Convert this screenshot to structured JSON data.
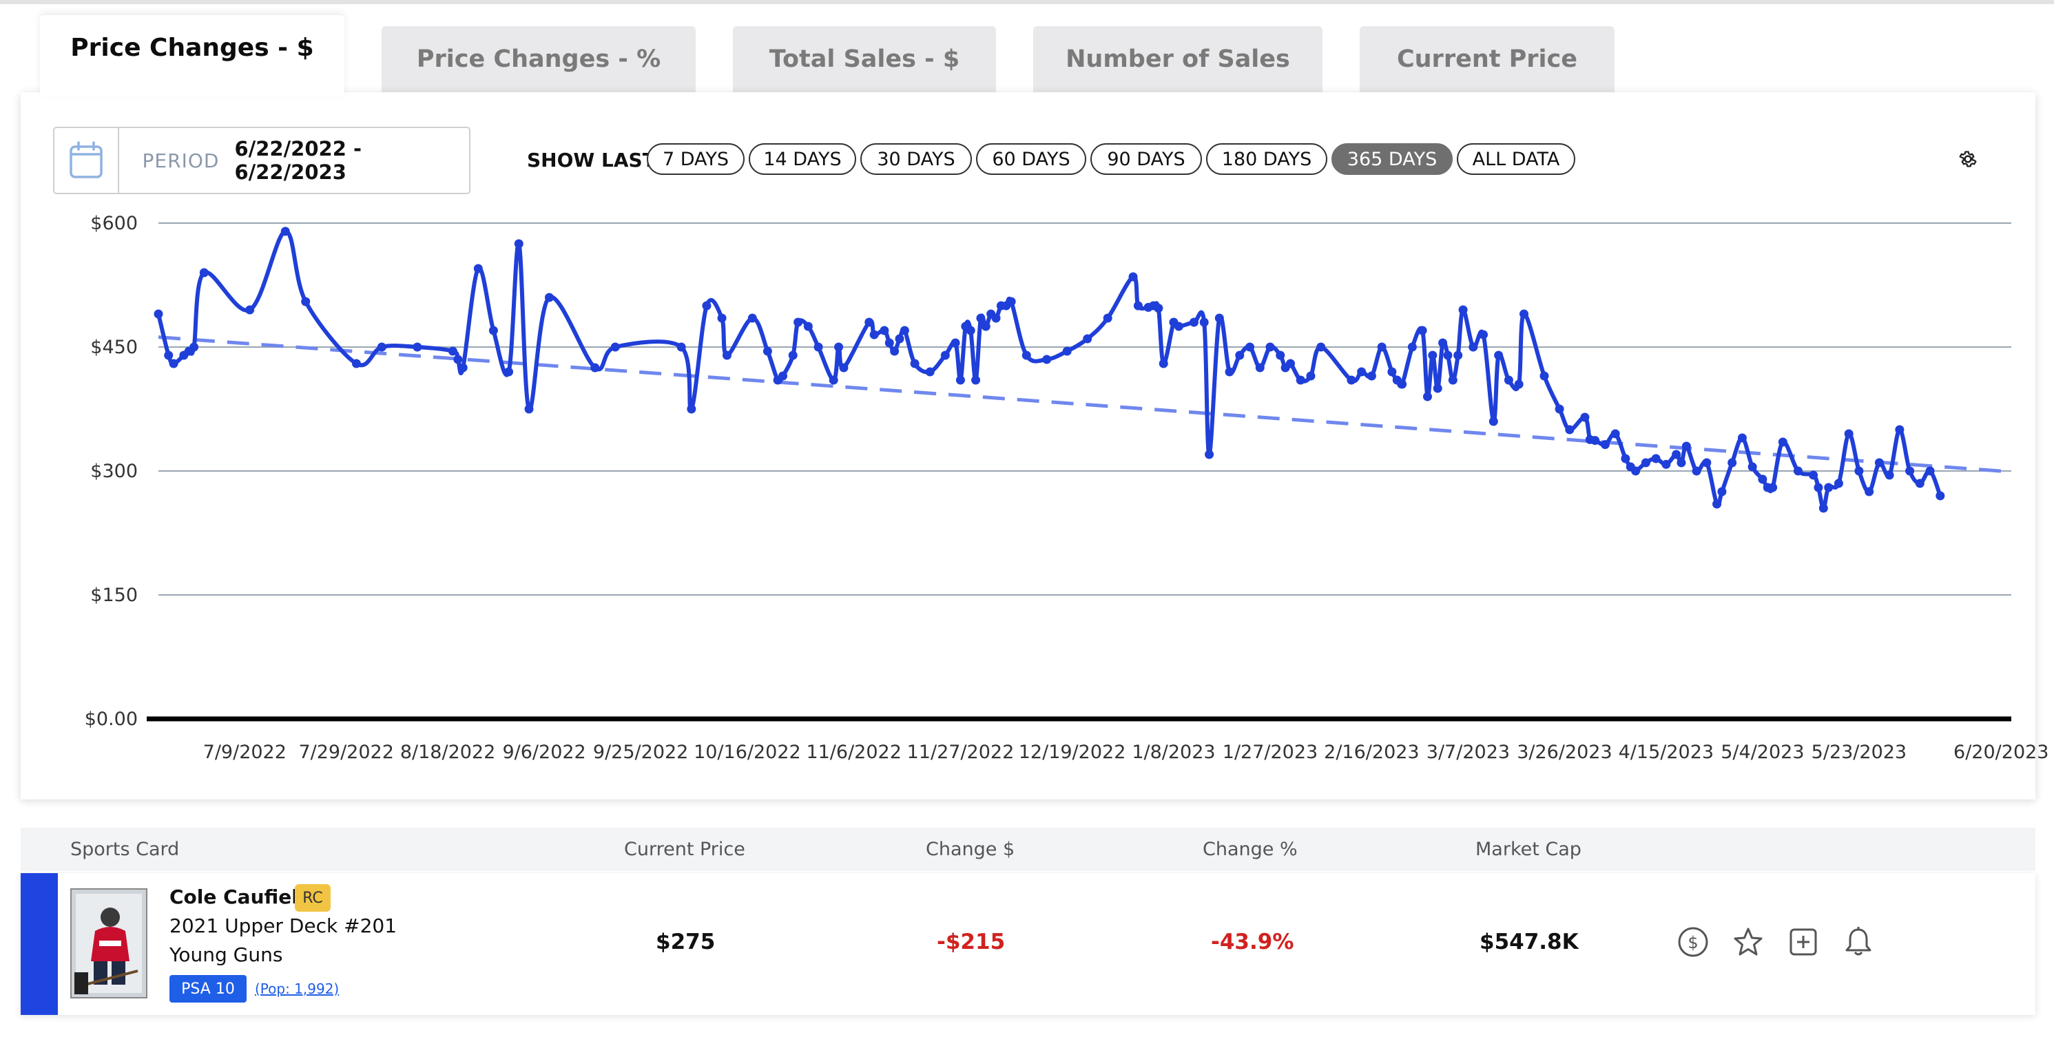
{
  "tabs": [
    {
      "label": "Price Changes - $",
      "active": true
    },
    {
      "label": "Price Changes - %",
      "active": false
    },
    {
      "label": "Total Sales - $",
      "active": false
    },
    {
      "label": "Number of Sales",
      "active": false
    },
    {
      "label": "Current Price",
      "active": false
    }
  ],
  "controls": {
    "period_label": "PERIOD",
    "period_value": "6/22/2022 - 6/22/2023",
    "show_last_label": "SHOW LAST",
    "ranges": [
      "7 DAYS",
      "14 DAYS",
      "30 DAYS",
      "60 DAYS",
      "90 DAYS",
      "180 DAYS",
      "365 DAYS",
      "ALL DATA"
    ],
    "active_range": "365 DAYS"
  },
  "chart_data": {
    "type": "line",
    "ylim": [
      0,
      600
    ],
    "ytick_labels": [
      "$0.00",
      "$150",
      "$300",
      "$450",
      "$600"
    ],
    "ytick_values": [
      0,
      150,
      300,
      450,
      600
    ],
    "xlim": [
      "2022-06-22",
      "2023-06-22"
    ],
    "xtick_labels": [
      "7/9/2022",
      "7/29/2022",
      "8/18/2022",
      "9/6/2022",
      "9/25/2022",
      "10/16/2022",
      "11/6/2022",
      "11/27/2022",
      "12/19/2022",
      "1/8/2023",
      "1/27/2023",
      "2/16/2023",
      "3/7/2023",
      "3/26/2023",
      "4/15/2023",
      "5/4/2023",
      "5/23/2023",
      "6/20/2023"
    ],
    "xtick_dates": [
      "2022-07-09",
      "2022-07-29",
      "2022-08-18",
      "2022-09-06",
      "2022-09-25",
      "2022-10-16",
      "2022-11-06",
      "2022-11-27",
      "2022-12-19",
      "2023-01-08",
      "2023-01-27",
      "2023-02-16",
      "2023-03-07",
      "2023-03-26",
      "2023-04-15",
      "2023-05-04",
      "2023-05-23",
      "2023-06-20"
    ],
    "grid": true,
    "series": [
      {
        "color": "#1f3fd8",
        "points": [
          [
            "2022-06-22",
            490
          ],
          [
            "2022-06-24",
            440
          ],
          [
            "2022-06-25",
            430
          ],
          [
            "2022-06-27",
            440
          ],
          [
            "2022-06-28",
            445
          ],
          [
            "2022-06-29",
            450
          ],
          [
            "2022-07-01",
            540
          ],
          [
            "2022-07-10",
            495
          ],
          [
            "2022-07-17",
            590
          ],
          [
            "2022-07-21",
            505
          ],
          [
            "2022-07-31",
            430
          ],
          [
            "2022-08-05",
            450
          ],
          [
            "2022-08-12",
            450
          ],
          [
            "2022-08-19",
            445
          ],
          [
            "2022-08-20",
            435
          ],
          [
            "2022-08-21",
            425
          ],
          [
            "2022-08-24",
            545
          ],
          [
            "2022-08-27",
            470
          ],
          [
            "2022-08-30",
            420
          ],
          [
            "2022-09-01",
            575
          ],
          [
            "2022-09-03",
            375
          ],
          [
            "2022-09-07",
            510
          ],
          [
            "2022-09-16",
            425
          ],
          [
            "2022-09-20",
            450
          ],
          [
            "2022-10-03",
            450
          ],
          [
            "2022-10-05",
            375
          ],
          [
            "2022-10-08",
            500
          ],
          [
            "2022-10-11",
            485
          ],
          [
            "2022-10-12",
            440
          ],
          [
            "2022-10-17",
            485
          ],
          [
            "2022-10-20",
            445
          ],
          [
            "2022-10-22",
            410
          ],
          [
            "2022-10-23",
            415
          ],
          [
            "2022-10-25",
            440
          ],
          [
            "2022-10-26",
            480
          ],
          [
            "2022-10-28",
            475
          ],
          [
            "2022-10-30",
            450
          ],
          [
            "2022-11-02",
            410
          ],
          [
            "2022-11-03",
            450
          ],
          [
            "2022-11-04",
            425
          ],
          [
            "2022-11-09",
            480
          ],
          [
            "2022-11-10",
            465
          ],
          [
            "2022-11-12",
            470
          ],
          [
            "2022-11-13",
            455
          ],
          [
            "2022-11-14",
            445
          ],
          [
            "2022-11-15",
            460
          ],
          [
            "2022-11-16",
            470
          ],
          [
            "2022-11-18",
            430
          ],
          [
            "2022-11-21",
            420
          ],
          [
            "2022-11-24",
            440
          ],
          [
            "2022-11-26",
            455
          ],
          [
            "2022-11-27",
            410
          ],
          [
            "2022-11-28",
            475
          ],
          [
            "2022-11-29",
            470
          ],
          [
            "2022-11-30",
            410
          ],
          [
            "2022-12-01",
            485
          ],
          [
            "2022-12-02",
            475
          ],
          [
            "2022-12-03",
            490
          ],
          [
            "2022-12-04",
            485
          ],
          [
            "2022-12-05",
            500
          ],
          [
            "2022-12-06",
            500
          ],
          [
            "2022-12-07",
            505
          ],
          [
            "2022-12-10",
            440
          ],
          [
            "2022-12-14",
            435
          ],
          [
            "2022-12-18",
            445
          ],
          [
            "2022-12-22",
            460
          ],
          [
            "2022-12-26",
            485
          ],
          [
            "2022-12-31",
            535
          ],
          [
            "2023-01-01",
            500
          ],
          [
            "2023-01-03",
            498
          ],
          [
            "2023-01-04",
            500
          ],
          [
            "2023-01-05",
            497
          ],
          [
            "2023-01-06",
            430
          ],
          [
            "2023-01-08",
            480
          ],
          [
            "2023-01-09",
            475
          ],
          [
            "2023-01-12",
            480
          ],
          [
            "2023-01-14",
            480
          ],
          [
            "2023-01-15",
            320
          ],
          [
            "2023-01-17",
            485
          ],
          [
            "2023-01-19",
            420
          ],
          [
            "2023-01-21",
            440
          ],
          [
            "2023-01-23",
            450
          ],
          [
            "2023-01-25",
            425
          ],
          [
            "2023-01-27",
            450
          ],
          [
            "2023-01-29",
            440
          ],
          [
            "2023-01-30",
            425
          ],
          [
            "2023-01-31",
            430
          ],
          [
            "2023-02-02",
            410
          ],
          [
            "2023-02-04",
            415
          ],
          [
            "2023-02-06",
            450
          ],
          [
            "2023-02-12",
            410
          ],
          [
            "2023-02-14",
            420
          ],
          [
            "2023-02-16",
            415
          ],
          [
            "2023-02-18",
            450
          ],
          [
            "2023-02-20",
            420
          ],
          [
            "2023-02-21",
            410
          ],
          [
            "2023-02-22",
            405
          ],
          [
            "2023-02-24",
            450
          ],
          [
            "2023-02-26",
            470
          ],
          [
            "2023-02-27",
            390
          ],
          [
            "2023-02-28",
            440
          ],
          [
            "2023-03-01",
            400
          ],
          [
            "2023-03-02",
            455
          ],
          [
            "2023-03-03",
            440
          ],
          [
            "2023-03-04",
            410
          ],
          [
            "2023-03-05",
            440
          ],
          [
            "2023-03-06",
            495
          ],
          [
            "2023-03-08",
            450
          ],
          [
            "2023-03-10",
            465
          ],
          [
            "2023-03-12",
            360
          ],
          [
            "2023-03-13",
            440
          ],
          [
            "2023-03-15",
            410
          ],
          [
            "2023-03-17",
            405
          ],
          [
            "2023-03-18",
            490
          ],
          [
            "2023-03-22",
            415
          ],
          [
            "2023-03-25",
            375
          ],
          [
            "2023-03-27",
            350
          ],
          [
            "2023-03-30",
            365
          ],
          [
            "2023-03-31",
            338
          ],
          [
            "2023-04-01",
            337
          ],
          [
            "2023-04-03",
            332
          ],
          [
            "2023-04-05",
            345
          ],
          [
            "2023-04-07",
            315
          ],
          [
            "2023-04-08",
            305
          ],
          [
            "2023-04-09",
            300
          ],
          [
            "2023-04-11",
            310
          ],
          [
            "2023-04-13",
            315
          ],
          [
            "2023-04-15",
            308
          ],
          [
            "2023-04-17",
            320
          ],
          [
            "2023-04-18",
            310
          ],
          [
            "2023-04-19",
            330
          ],
          [
            "2023-04-21",
            300
          ],
          [
            "2023-04-23",
            310
          ],
          [
            "2023-04-25",
            260
          ],
          [
            "2023-04-26",
            275
          ],
          [
            "2023-04-28",
            310
          ],
          [
            "2023-04-30",
            340
          ],
          [
            "2023-05-02",
            305
          ],
          [
            "2023-05-04",
            290
          ],
          [
            "2023-05-05",
            280
          ],
          [
            "2023-05-06",
            280
          ],
          [
            "2023-05-08",
            335
          ],
          [
            "2023-05-11",
            300
          ],
          [
            "2023-05-14",
            295
          ],
          [
            "2023-05-15",
            280
          ],
          [
            "2023-05-16",
            255
          ],
          [
            "2023-05-17",
            280
          ],
          [
            "2023-05-19",
            285
          ],
          [
            "2023-05-21",
            345
          ],
          [
            "2023-05-23",
            300
          ],
          [
            "2023-05-25",
            275
          ],
          [
            "2023-05-27",
            310
          ],
          [
            "2023-05-29",
            295
          ],
          [
            "2023-05-31",
            350
          ],
          [
            "2023-06-02",
            300
          ],
          [
            "2023-06-04",
            285
          ],
          [
            "2023-06-06",
            300
          ],
          [
            "2023-06-08",
            270
          ]
        ]
      }
    ],
    "trend": {
      "start": [
        "2022-06-22",
        462
      ],
      "end": [
        "2023-06-22",
        299
      ],
      "color": "#6f87ee",
      "style": "dashed"
    }
  },
  "table": {
    "headers": [
      "Sports Card",
      "Current Price",
      "Change $",
      "Change %",
      "Market Cap"
    ],
    "row": {
      "player": "Cole Caufield",
      "rc_badge": "RC",
      "set": "2021 Upper Deck #201",
      "subset": "Young Guns",
      "grade": "PSA 10",
      "pop": "(Pop: 1,992)",
      "current_price": "$275",
      "change_dollar": "-$215",
      "change_percent": "-43.9%",
      "market_cap": "$547.8K"
    },
    "actions": [
      "dollar-circle-icon",
      "star-icon",
      "plus-square-icon",
      "bell-icon"
    ]
  },
  "colors": {
    "accent": "#1f45e0",
    "line": "#1f3fd8",
    "trend": "#6f87ee",
    "negative": "#d0221f",
    "badge": "#f2c443"
  }
}
